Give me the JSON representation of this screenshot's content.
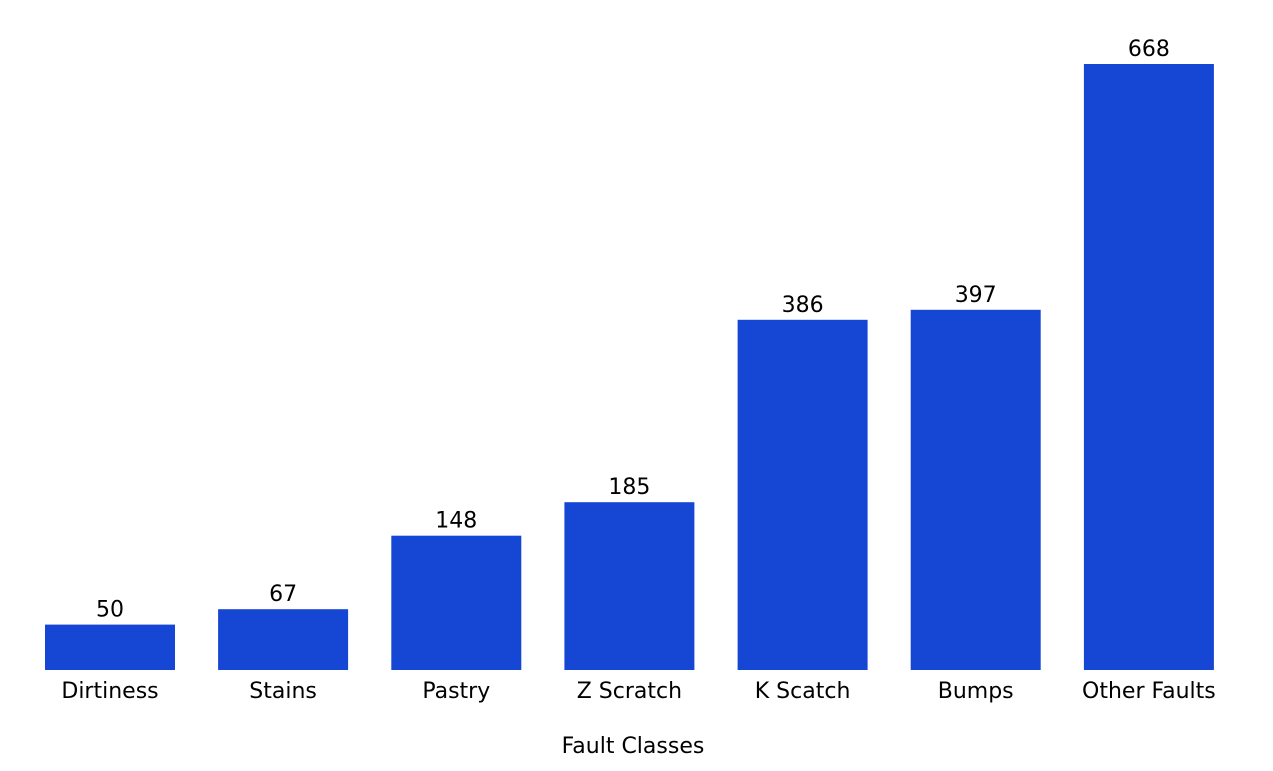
{
  "chart_data": {
    "type": "bar",
    "categories": [
      "Dirtiness",
      "Stains",
      "Pastry",
      "Z Scratch",
      "K Scatch",
      "Bumps",
      "Other Faults"
    ],
    "values": [
      50,
      67,
      148,
      185,
      386,
      397,
      668
    ],
    "title": "",
    "xlabel": "Fault Classes",
    "ylabel": "",
    "ylim": [
      0,
      668
    ],
    "grid": false,
    "legend": "none",
    "data_labels": true,
    "bar_color": "#1646d4"
  }
}
